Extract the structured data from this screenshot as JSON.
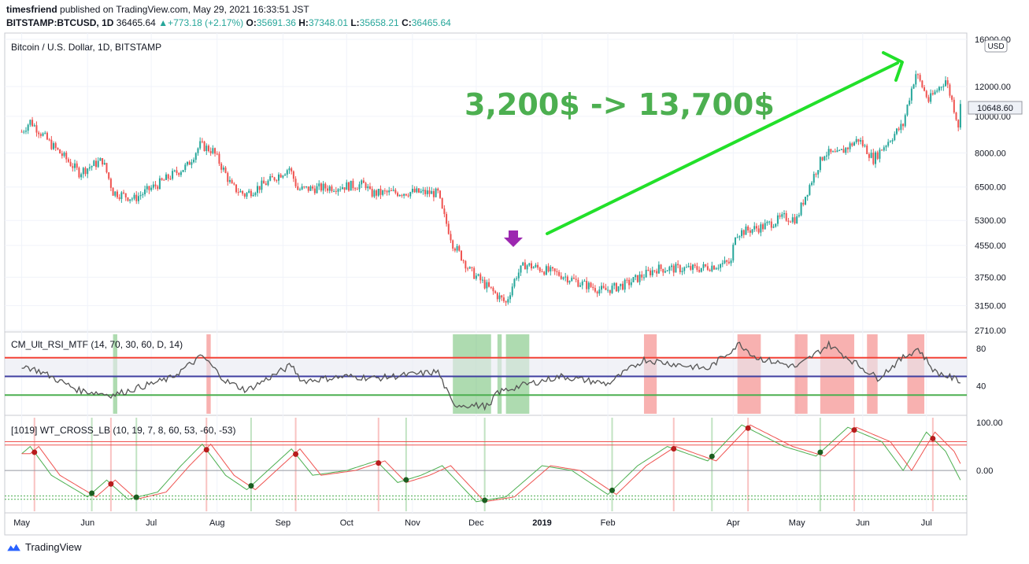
{
  "header": {
    "author": "timesfriend",
    "published": "published on TradingView.com, May 29, 2021 16:33:51 JST",
    "symbol": "BITSTAMP:BTCUSD, 1D",
    "last": "36465.64",
    "change": "+773.18 (+2.17%)",
    "o_label": "O:",
    "o_value": "35691.36",
    "h_label": "H:",
    "h_value": "37348.01",
    "l_label": "L:",
    "l_value": "35658.21",
    "c_label": "C:",
    "c_value": "36465.64"
  },
  "footer": {
    "brand": "TradingView"
  },
  "chart_data": [
    {
      "type": "candlestick",
      "title": "Bitcoin / U.S. Dollar, 1D, BITSTAMP",
      "currency_label": "USD",
      "scale": "log",
      "annotation": "3,200$ -> 13,700$",
      "current_price_label": "10648.60",
      "y_tick_labels": [
        "16000.00",
        "12000.00",
        "10000.00",
        "8000.00",
        "6500.00",
        "5300.00",
        "4550.00",
        "3750.00",
        "3150.00",
        "2710.00"
      ],
      "x_tick_labels": [
        "May",
        "Jun",
        "Jul",
        "Aug",
        "Sep",
        "Oct",
        "Nov",
        "Dec",
        "2019",
        "Feb",
        "Apr",
        "May",
        "Jun",
        "Jul"
      ],
      "price_path": [
        [
          "2018-05-01",
          9100
        ],
        [
          "2018-05-05",
          9700
        ],
        [
          "2018-05-15",
          8400
        ],
        [
          "2018-05-28",
          7100
        ],
        [
          "2018-06-08",
          7650
        ],
        [
          "2018-06-13",
          6300
        ],
        [
          "2018-06-23",
          6050
        ],
        [
          "2018-07-04",
          6600
        ],
        [
          "2018-07-18",
          7400
        ],
        [
          "2018-07-24",
          8400
        ],
        [
          "2018-07-30",
          8100
        ],
        [
          "2018-08-08",
          6500
        ],
        [
          "2018-08-14",
          6200
        ],
        [
          "2018-08-25",
          6700
        ],
        [
          "2018-09-04",
          7300
        ],
        [
          "2018-09-08",
          6400
        ],
        [
          "2018-09-25",
          6500
        ],
        [
          "2018-10-10",
          6600
        ],
        [
          "2018-10-12",
          6250
        ],
        [
          "2018-11-01",
          6300
        ],
        [
          "2018-11-13",
          6250
        ],
        [
          "2018-11-15",
          5600
        ],
        [
          "2018-11-20",
          4600
        ],
        [
          "2018-11-28",
          3900
        ],
        [
          "2018-12-07",
          3500
        ],
        [
          "2018-12-15",
          3200
        ],
        [
          "2018-12-20",
          3800
        ],
        [
          "2018-12-24",
          4050
        ],
        [
          "2019-01-10",
          3800
        ],
        [
          "2019-01-20",
          3600
        ],
        [
          "2019-01-30",
          3450
        ],
        [
          "2019-02-10",
          3600
        ],
        [
          "2019-02-24",
          3950
        ],
        [
          "2019-03-15",
          3950
        ],
        [
          "2019-03-31",
          4100
        ],
        [
          "2019-04-02",
          4900
        ],
        [
          "2019-04-15",
          5100
        ],
        [
          "2019-04-25",
          5400
        ],
        [
          "2019-05-01",
          5350
        ],
        [
          "2019-05-14",
          8000
        ],
        [
          "2019-05-20",
          7900
        ],
        [
          "2019-05-30",
          8700
        ],
        [
          "2019-06-06",
          7700
        ],
        [
          "2019-06-20",
          9500
        ],
        [
          "2019-06-26",
          13000
        ],
        [
          "2019-07-02",
          11000
        ],
        [
          "2019-07-10",
          12500
        ],
        [
          "2019-07-16",
          9500
        ],
        [
          "2019-07-17",
          10648.6
        ]
      ]
    },
    {
      "type": "line",
      "title": "CM_Ult_RSI_MTF (14, 70, 30, 60, D, 14)",
      "y_tick_labels": [
        "80",
        "40"
      ],
      "levels": [
        70,
        50,
        30
      ],
      "oversold_zones": [
        [
          "2018-06-13",
          "2018-06-15"
        ],
        [
          "2018-11-20",
          "2018-12-08"
        ],
        [
          "2018-12-11",
          "2018-12-13"
        ],
        [
          "2018-12-15",
          "2018-12-26"
        ]
      ],
      "overbought_zones": [
        [
          "2018-07-27",
          "2018-07-29"
        ],
        [
          "2019-02-18",
          "2019-02-24"
        ],
        [
          "2019-04-03",
          "2019-04-14"
        ],
        [
          "2019-04-30",
          "2019-05-06"
        ],
        [
          "2019-05-12",
          "2019-05-28"
        ],
        [
          "2019-06-03",
          "2019-06-08"
        ],
        [
          "2019-06-22",
          "2019-06-30"
        ]
      ],
      "rsi": [
        [
          "2018-05-01",
          62
        ],
        [
          "2018-05-10",
          55
        ],
        [
          "2018-05-28",
          35
        ],
        [
          "2018-06-13",
          30
        ],
        [
          "2018-06-25",
          38
        ],
        [
          "2018-07-10",
          48
        ],
        [
          "2018-07-25",
          72
        ],
        [
          "2018-08-05",
          45
        ],
        [
          "2018-08-15",
          35
        ],
        [
          "2018-09-05",
          62
        ],
        [
          "2018-09-10",
          45
        ],
        [
          "2018-10-01",
          50
        ],
        [
          "2018-10-15",
          48
        ],
        [
          "2018-11-13",
          55
        ],
        [
          "2018-11-20",
          20
        ],
        [
          "2018-12-08",
          18
        ],
        [
          "2018-12-10",
          32
        ],
        [
          "2018-12-22",
          40
        ],
        [
          "2019-01-10",
          50
        ],
        [
          "2019-02-01",
          42
        ],
        [
          "2019-02-18",
          68
        ],
        [
          "2019-03-20",
          58
        ],
        [
          "2019-04-04",
          85
        ],
        [
          "2019-04-12",
          70
        ],
        [
          "2019-05-01",
          60
        ],
        [
          "2019-05-16",
          84
        ],
        [
          "2019-05-30",
          62
        ],
        [
          "2019-06-08",
          48
        ],
        [
          "2019-06-20",
          70
        ],
        [
          "2019-06-27",
          80
        ],
        [
          "2019-07-05",
          55
        ],
        [
          "2019-07-17",
          45
        ]
      ]
    },
    {
      "type": "line",
      "title": "[1019] WT_CROSS_LB (10, 19, 7, 8, 60, 53, -60, -53)",
      "y_tick_labels": [
        "100.00",
        "0.00"
      ],
      "levels": [
        60,
        53,
        -60,
        -53
      ],
      "wt1": [
        [
          "2018-05-01",
          35
        ],
        [
          "2018-05-05",
          50
        ],
        [
          "2018-05-15",
          -10
        ],
        [
          "2018-06-01",
          -55
        ],
        [
          "2018-06-10",
          -20
        ],
        [
          "2018-06-20",
          -60
        ],
        [
          "2018-07-04",
          -45
        ],
        [
          "2018-07-15",
          10
        ],
        [
          "2018-07-25",
          55
        ],
        [
          "2018-08-05",
          -10
        ],
        [
          "2018-08-15",
          -40
        ],
        [
          "2018-09-05",
          45
        ],
        [
          "2018-09-15",
          -10
        ],
        [
          "2018-10-01",
          0
        ],
        [
          "2018-10-15",
          20
        ],
        [
          "2018-10-25",
          -25
        ],
        [
          "2018-11-05",
          -10
        ],
        [
          "2018-11-15",
          10
        ],
        [
          "2018-12-01",
          -65
        ],
        [
          "2018-12-15",
          -55
        ],
        [
          "2019-01-01",
          10
        ],
        [
          "2019-01-15",
          0
        ],
        [
          "2019-02-01",
          -50
        ],
        [
          "2019-02-15",
          10
        ],
        [
          "2019-03-01",
          50
        ],
        [
          "2019-03-20",
          20
        ],
        [
          "2019-04-05",
          95
        ],
        [
          "2019-04-25",
          50
        ],
        [
          "2019-05-10",
          30
        ],
        [
          "2019-05-25",
          90
        ],
        [
          "2019-06-10",
          60
        ],
        [
          "2019-06-20",
          0
        ],
        [
          "2019-07-01",
          80
        ],
        [
          "2019-07-10",
          40
        ],
        [
          "2019-07-17",
          -20
        ]
      ]
    }
  ]
}
